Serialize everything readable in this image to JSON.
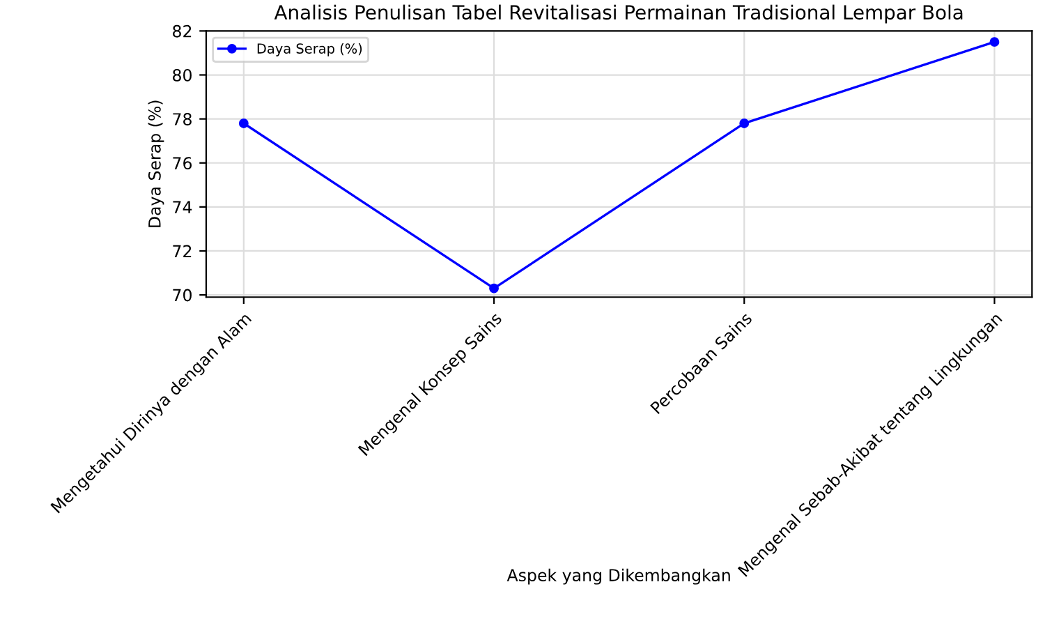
{
  "chart_data": {
    "type": "line",
    "title": "Analisis Penulisan Tabel Revitalisasi Permainan Tradisional Lempar Bola",
    "xlabel": "Aspek yang Dikembangkan",
    "ylabel": "Daya Serap (%)",
    "categories": [
      "Mengetahui Dirinya dengan Alam",
      "Mengenal Konsep Sains",
      "Percobaan Sains",
      "Mengenal Sebab-Akibat tentang Lingkungan"
    ],
    "series": [
      {
        "name": "Daya Serap (%)",
        "color": "#0000ff",
        "values": [
          77.8,
          70.3,
          77.8,
          81.5
        ]
      }
    ],
    "ylim": [
      69.9,
      82
    ],
    "yticks": [
      70,
      72,
      74,
      76,
      78,
      80,
      82
    ],
    "grid": true,
    "legend": "top left",
    "marker": "circle",
    "line_style": "solid"
  }
}
